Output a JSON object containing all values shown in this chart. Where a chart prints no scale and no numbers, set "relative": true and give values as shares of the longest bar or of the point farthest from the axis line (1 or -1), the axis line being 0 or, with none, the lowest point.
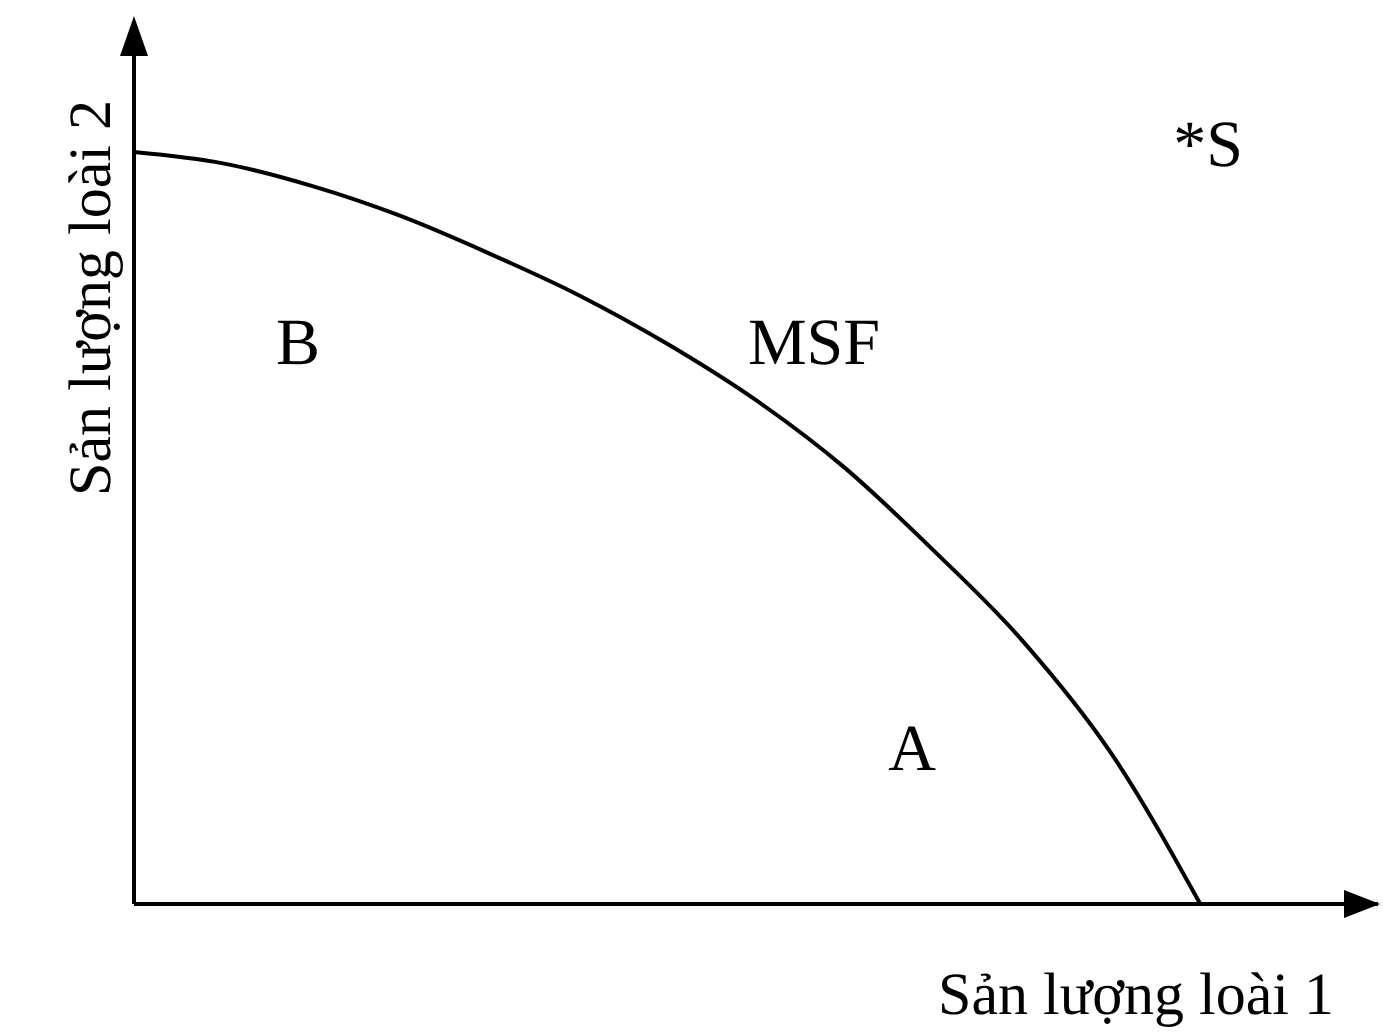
{
  "chart_data": {
    "type": "line",
    "xlabel": "Sản lượng loài 1",
    "ylabel": "Sản lượng loài 2",
    "annotations": [
      "B",
      "MSF",
      "A",
      "*S"
    ],
    "categories": [
      null,
      null,
      null,
      null,
      null,
      null,
      null,
      null,
      null,
      null,
      null,
      null,
      null,
      null,
      null
    ],
    "relative": true,
    "marker": "none",
    "series": [
      {
        "color": "#000000",
        "values": [
          1,
          0.985,
          0.955,
          0.915,
          0.865,
          0.81,
          0.745,
          0.67,
          0.58,
          0.47,
          0.35,
          0.2,
          0,
          null,
          null
        ]
      }
    ]
  }
}
